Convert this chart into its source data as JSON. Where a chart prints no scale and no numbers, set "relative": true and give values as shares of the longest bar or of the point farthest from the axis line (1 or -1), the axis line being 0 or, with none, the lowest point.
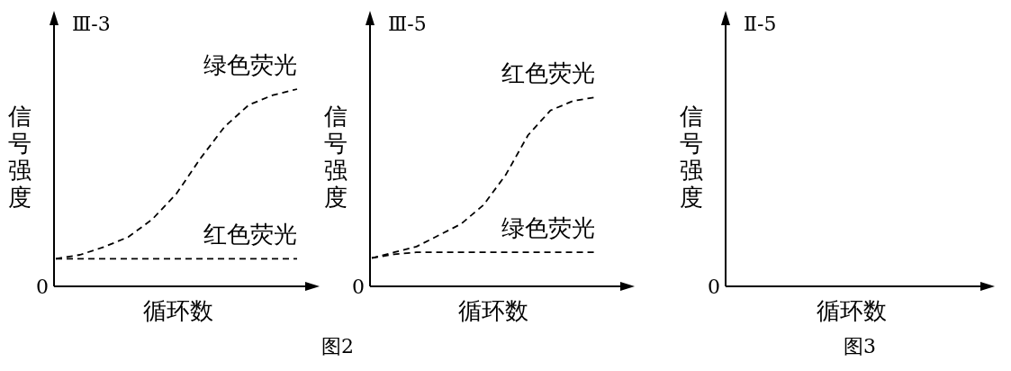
{
  "chart_data": [
    {
      "type": "line",
      "title": "Ⅲ-3",
      "xlabel": "循环数",
      "ylabel": "信号强度",
      "relative": true,
      "line_style": "dashed",
      "marker": "none",
      "legend": false,
      "categories": [
        null,
        null,
        null,
        null,
        null,
        null,
        null,
        null,
        null,
        null,
        null
      ],
      "series": [
        {
          "name": "绿色荧光",
          "color": "#000000",
          "values": [
            0.14,
            0.16,
            0.2,
            0.25,
            0.34,
            0.47,
            0.65,
            0.81,
            0.92,
            0.97,
            1
          ]
        },
        {
          "name": "红色荧光",
          "color": "#000000",
          "values": [
            0.14,
            0.14,
            0.14,
            0.14,
            0.14,
            0.14,
            0.14,
            0.14,
            0.14,
            0.14,
            0.14
          ]
        }
      ],
      "annotations": [
        "0",
        "图2"
      ]
    },
    {
      "type": "line",
      "title": "Ⅲ-5",
      "xlabel": "循环数",
      "ylabel": "信号强度",
      "relative": true,
      "line_style": "dashed",
      "marker": "none",
      "legend": false,
      "categories": [
        null,
        null,
        null,
        null,
        null,
        null,
        null,
        null,
        null,
        null,
        null
      ],
      "series": [
        {
          "name": "红色荧光",
          "color": "#000000",
          "values": [
            0.15,
            0.18,
            0.21,
            0.27,
            0.33,
            0.43,
            0.59,
            0.8,
            0.93,
            0.98,
            1
          ]
        },
        {
          "name": "绿色荧光",
          "color": "#000000",
          "values": [
            0.15,
            0.17,
            0.18,
            0.18,
            0.18,
            0.18,
            0.18,
            0.18,
            0.18,
            0.18,
            0.18
          ]
        }
      ],
      "annotations": [
        "0"
      ]
    },
    {
      "type": "other",
      "title": "Ⅱ-5",
      "xlabel": "循环数",
      "ylabel": "信号强度",
      "annotations": [
        "0",
        "图3"
      ]
    }
  ]
}
